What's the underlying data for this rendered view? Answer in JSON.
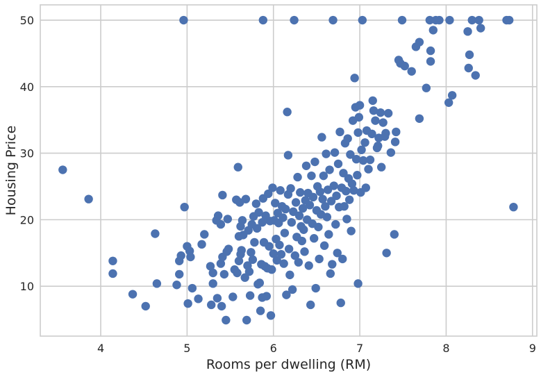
{
  "chart_data": {
    "type": "scatter",
    "title": "",
    "xlabel": "Rooms per dwelling (RM)",
    "ylabel": "Housing Price",
    "xlim": [
      3.3,
      9.05
    ],
    "ylim": [
      2.5,
      52.3
    ],
    "xticks": [
      4,
      5,
      6,
      7,
      8,
      9
    ],
    "yticks": [
      10,
      20,
      30,
      40,
      50
    ],
    "grid": true,
    "legend": "none",
    "color": "#4c72b0",
    "series": [
      {
        "points": [
          [
            3.56,
            27.5
          ],
          [
            3.86,
            23.1
          ],
          [
            4.14,
            13.8
          ],
          [
            4.14,
            11.9
          ],
          [
            4.37,
            8.8
          ],
          [
            4.52,
            7.0
          ],
          [
            4.63,
            17.9
          ],
          [
            4.65,
            10.4
          ],
          [
            4.88,
            10.2
          ],
          [
            4.91,
            11.8
          ],
          [
            4.91,
            13.8
          ],
          [
            4.93,
            14.6
          ],
          [
            4.96,
            50.0
          ],
          [
            4.97,
            21.9
          ],
          [
            5.0,
            16.0
          ],
          [
            5.01,
            7.4
          ],
          [
            5.03,
            15.3
          ],
          [
            5.04,
            14.4
          ],
          [
            5.06,
            9.7
          ],
          [
            5.13,
            8.1
          ],
          [
            5.17,
            16.3
          ],
          [
            5.2,
            17.8
          ],
          [
            5.27,
            13.0
          ],
          [
            5.28,
            7.2
          ],
          [
            5.3,
            10.4
          ],
          [
            5.3,
            12.0
          ],
          [
            5.34,
            19.9
          ],
          [
            5.35,
            8.2
          ],
          [
            5.36,
            20.6
          ],
          [
            5.39,
            13.4
          ],
          [
            5.39,
            19.3
          ],
          [
            5.4,
            7.0
          ],
          [
            5.41,
            14.4
          ],
          [
            5.41,
            23.7
          ],
          [
            5.43,
            11.8
          ],
          [
            5.45,
            4.9
          ],
          [
            5.46,
            15.2
          ],
          [
            5.47,
            20.1
          ],
          [
            5.48,
            15.6
          ],
          [
            5.53,
            8.4
          ],
          [
            5.55,
            12.5
          ],
          [
            5.57,
            23.0
          ],
          [
            5.58,
            12.0
          ],
          [
            5.59,
            27.9
          ],
          [
            5.6,
            13.8
          ],
          [
            5.6,
            17.5
          ],
          [
            5.61,
            22.6
          ],
          [
            5.62,
            14.8
          ],
          [
            5.62,
            19.0
          ],
          [
            5.63,
            15.4
          ],
          [
            5.64,
            19.9
          ],
          [
            5.65,
            17.7
          ],
          [
            5.67,
            11.3
          ],
          [
            5.68,
            23.1
          ],
          [
            5.69,
            4.9
          ],
          [
            5.7,
            13.1
          ],
          [
            5.71,
            18.4
          ],
          [
            5.72,
            12.2
          ],
          [
            5.73,
            8.6
          ],
          [
            5.74,
            15.1
          ],
          [
            5.75,
            19.3
          ],
          [
            5.76,
            14.0
          ],
          [
            5.77,
            20.5
          ],
          [
            5.78,
            16.6
          ],
          [
            5.8,
            22.4
          ],
          [
            5.81,
            18.7
          ],
          [
            5.82,
            10.3
          ],
          [
            5.83,
            21.1
          ],
          [
            5.84,
            10.5
          ],
          [
            5.85,
            6.3
          ],
          [
            5.86,
            13.3
          ],
          [
            5.87,
            8.3
          ],
          [
            5.87,
            19.6
          ],
          [
            5.88,
            23.2
          ],
          [
            5.88,
            50.0
          ],
          [
            5.89,
            16.6
          ],
          [
            5.9,
            13.0
          ],
          [
            5.91,
            20.6
          ],
          [
            5.92,
            8.5
          ],
          [
            5.93,
            12.7
          ],
          [
            5.94,
            23.9
          ],
          [
            5.95,
            16.0
          ],
          [
            5.96,
            19.8
          ],
          [
            5.97,
            5.6
          ],
          [
            5.98,
            12.5
          ],
          [
            5.99,
            24.8
          ],
          [
            6.0,
            14.9
          ],
          [
            6.01,
            19.9
          ],
          [
            6.02,
            22.5
          ],
          [
            6.03,
            17.1
          ],
          [
            6.04,
            13.9
          ],
          [
            6.05,
            21.0
          ],
          [
            6.06,
            19.5
          ],
          [
            6.07,
            16.2
          ],
          [
            6.08,
            24.4
          ],
          [
            6.09,
            14.8
          ],
          [
            6.1,
            22.0
          ],
          [
            6.11,
            20.3
          ],
          [
            6.12,
            13.4
          ],
          [
            6.13,
            18.0
          ],
          [
            6.14,
            21.6
          ],
          [
            6.15,
            8.7
          ],
          [
            6.16,
            36.2
          ],
          [
            6.17,
            29.7
          ],
          [
            6.17,
            23.8
          ],
          [
            6.18,
            15.6
          ],
          [
            6.19,
            11.7
          ],
          [
            6.2,
            24.7
          ],
          [
            6.21,
            19.6
          ],
          [
            6.22,
            9.5
          ],
          [
            6.23,
            21.2
          ],
          [
            6.24,
            50.0
          ],
          [
            6.25,
            14.6
          ],
          [
            6.26,
            22.6
          ],
          [
            6.27,
            17.4
          ],
          [
            6.28,
            26.4
          ],
          [
            6.29,
            13.6
          ],
          [
            6.3,
            20.6
          ],
          [
            6.31,
            24.1
          ],
          [
            6.32,
            19.0
          ],
          [
            6.33,
            16.8
          ],
          [
            6.34,
            21.7
          ],
          [
            6.35,
            18.5
          ],
          [
            6.36,
            15.2
          ],
          [
            6.37,
            22.9
          ],
          [
            6.38,
            28.1
          ],
          [
            6.39,
            20.0
          ],
          [
            6.4,
            24.0
          ],
          [
            6.41,
            13.1
          ],
          [
            6.42,
            22.2
          ],
          [
            6.43,
            7.2
          ],
          [
            6.44,
            26.6
          ],
          [
            6.45,
            19.4
          ],
          [
            6.46,
            23.4
          ],
          [
            6.47,
            17.2
          ],
          [
            6.48,
            28.7
          ],
          [
            6.49,
            9.7
          ],
          [
            6.5,
            21.4
          ],
          [
            6.51,
            25.0
          ],
          [
            6.52,
            18.9
          ],
          [
            6.53,
            14.1
          ],
          [
            6.54,
            24.2
          ],
          [
            6.55,
            20.8
          ],
          [
            6.56,
            32.4
          ],
          [
            6.57,
            23.1
          ],
          [
            6.58,
            26.6
          ],
          [
            6.59,
            16.1
          ],
          [
            6.6,
            22.0
          ],
          [
            6.61,
            29.9
          ],
          [
            6.62,
            20.4
          ],
          [
            6.63,
            24.5
          ],
          [
            6.64,
            17.8
          ],
          [
            6.65,
            27.5
          ],
          [
            6.66,
            11.9
          ],
          [
            6.67,
            22.8
          ],
          [
            6.68,
            13.3
          ],
          [
            6.69,
            50.0
          ],
          [
            6.7,
            25.1
          ],
          [
            6.71,
            30.1
          ],
          [
            6.72,
            19.3
          ],
          [
            6.73,
            23.6
          ],
          [
            6.74,
            15.0
          ],
          [
            6.75,
            28.4
          ],
          [
            6.76,
            21.9
          ],
          [
            6.77,
            33.2
          ],
          [
            6.78,
            7.5
          ],
          [
            6.79,
            24.8
          ],
          [
            6.8,
            14.1
          ],
          [
            6.81,
            27.0
          ],
          [
            6.82,
            22.0
          ],
          [
            6.83,
            31.5
          ],
          [
            6.84,
            24.3
          ],
          [
            6.85,
            20.1
          ],
          [
            6.86,
            32.2
          ],
          [
            6.87,
            26.2
          ],
          [
            6.88,
            23.0
          ],
          [
            6.89,
            29.8
          ],
          [
            6.9,
            18.3
          ],
          [
            6.91,
            25.4
          ],
          [
            6.92,
            34.9
          ],
          [
            6.93,
            24.4
          ],
          [
            6.94,
            41.3
          ],
          [
            6.95,
            36.9
          ],
          [
            6.96,
            29.1
          ],
          [
            6.97,
            26.7
          ],
          [
            6.98,
            10.4
          ],
          [
            6.98,
            33.1
          ],
          [
            6.99,
            35.4
          ],
          [
            7.0,
            37.2
          ],
          [
            7.01,
            24.1
          ],
          [
            7.02,
            30.5
          ],
          [
            7.03,
            50.0
          ],
          [
            7.04,
            28.9
          ],
          [
            7.06,
            31.6
          ],
          [
            7.07,
            24.8
          ],
          [
            7.08,
            33.4
          ],
          [
            7.1,
            27.6
          ],
          [
            7.12,
            29.0
          ],
          [
            7.14,
            32.9
          ],
          [
            7.15,
            37.9
          ],
          [
            7.16,
            36.4
          ],
          [
            7.18,
            34.9
          ],
          [
            7.2,
            30.8
          ],
          [
            7.21,
            31.1
          ],
          [
            7.22,
            32.3
          ],
          [
            7.24,
            36.1
          ],
          [
            7.25,
            27.9
          ],
          [
            7.27,
            34.6
          ],
          [
            7.29,
            32.5
          ],
          [
            7.3,
            33.0
          ],
          [
            7.31,
            15.0
          ],
          [
            7.33,
            36.0
          ],
          [
            7.36,
            30.1
          ],
          [
            7.4,
            17.8
          ],
          [
            7.41,
            31.7
          ],
          [
            7.42,
            33.2
          ],
          [
            7.45,
            44.0
          ],
          [
            7.47,
            43.5
          ],
          [
            7.49,
            50.0
          ],
          [
            7.52,
            43.1
          ],
          [
            7.6,
            42.3
          ],
          [
            7.65,
            46.0
          ],
          [
            7.69,
            46.7
          ],
          [
            7.69,
            35.2
          ],
          [
            7.77,
            39.8
          ],
          [
            7.81,
            50.0
          ],
          [
            7.82,
            43.8
          ],
          [
            7.82,
            45.4
          ],
          [
            7.85,
            48.5
          ],
          [
            7.88,
            50.0
          ],
          [
            7.92,
            50.0
          ],
          [
            8.03,
            37.6
          ],
          [
            8.04,
            50.0
          ],
          [
            8.07,
            38.7
          ],
          [
            8.25,
            48.3
          ],
          [
            8.26,
            42.8
          ],
          [
            8.27,
            44.8
          ],
          [
            8.3,
            50.0
          ],
          [
            8.34,
            41.7
          ],
          [
            8.38,
            50.0
          ],
          [
            8.4,
            48.8
          ],
          [
            8.7,
            50.0
          ],
          [
            8.73,
            50.0
          ],
          [
            8.78,
            21.9
          ]
        ]
      }
    ]
  }
}
